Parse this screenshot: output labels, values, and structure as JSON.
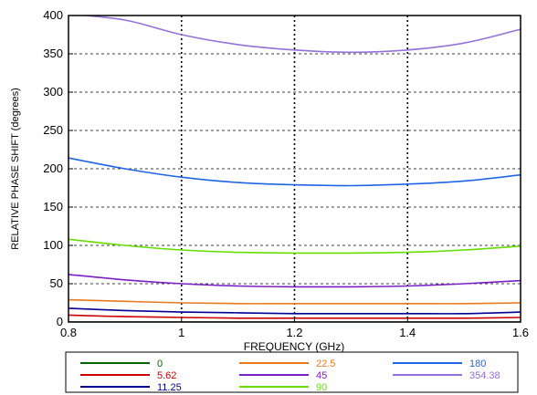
{
  "chart_data": {
    "type": "line",
    "title": "",
    "xlabel": "FREQUENCY (GHz)",
    "ylabel": "RELATIVE PHASE SHIFT  (degrees)",
    "xlim": [
      0.8,
      1.6
    ],
    "ylim": [
      0,
      400
    ],
    "x_ticks": [
      0.8,
      1.0,
      1.2,
      1.4,
      1.6
    ],
    "x_tick_labels": [
      "0.8",
      "1",
      "1.2",
      "1.4",
      "1.6"
    ],
    "y_ticks": [
      0,
      50,
      100,
      150,
      200,
      250,
      300,
      350,
      400
    ],
    "y_tick_labels": [
      "0",
      "50",
      "100",
      "150",
      "200",
      "250",
      "300",
      "350",
      "400"
    ],
    "grid": "dashed (horizontal), dotted (vertical)",
    "legend_position": "bottom",
    "x": [
      0.8,
      0.9,
      1.0,
      1.1,
      1.2,
      1.3,
      1.4,
      1.5,
      1.6
    ],
    "series": [
      {
        "name": "0",
        "color": "#006400",
        "values": [
          0,
          0,
          0,
          0,
          0,
          0,
          0,
          0,
          0
        ]
      },
      {
        "name": "5.62",
        "color": "#cc0000",
        "values": [
          9,
          7,
          6,
          5,
          5,
          5,
          5,
          5,
          6
        ]
      },
      {
        "name": "11.25",
        "color": "#000099",
        "values": [
          18,
          15,
          13,
          12,
          11,
          11,
          11,
          11,
          13
        ]
      },
      {
        "name": "22.5",
        "color": "#e87a1e",
        "values": [
          29,
          27,
          25,
          24,
          24,
          24,
          24,
          24,
          25
        ]
      },
      {
        "name": "45",
        "color": "#7b1fc7",
        "values": [
          62,
          55,
          50,
          47,
          46,
          46,
          47,
          50,
          54
        ]
      },
      {
        "name": "90",
        "color": "#66dd00",
        "values": [
          108,
          100,
          94,
          91,
          90,
          90,
          91,
          94,
          99
        ]
      },
      {
        "name": "180",
        "color": "#1e66e6",
        "values": [
          214,
          200,
          189,
          182,
          179,
          178,
          180,
          184,
          192
        ]
      },
      {
        "name": "354.38",
        "color": "#9370db",
        "values": [
          407,
          394,
          375,
          362,
          355,
          352,
          355,
          364,
          382
        ]
      }
    ],
    "legend_rows": [
      [
        "0",
        "22.5",
        "180"
      ],
      [
        "5.62",
        "45",
        "354.38"
      ],
      [
        "11.25",
        "90"
      ]
    ]
  }
}
